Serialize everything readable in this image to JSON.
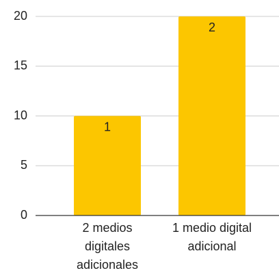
{
  "chart_data": {
    "type": "bar",
    "categories": [
      "2 medios digitales adicionales",
      "1 medio digital adicional"
    ],
    "values": [
      10,
      20
    ],
    "bar_labels": [
      "1",
      "2"
    ],
    "color": "#fcc600",
    "ylim": [
      0,
      20
    ],
    "yticks": [
      0,
      5,
      10,
      15,
      20
    ],
    "grid": true
  }
}
